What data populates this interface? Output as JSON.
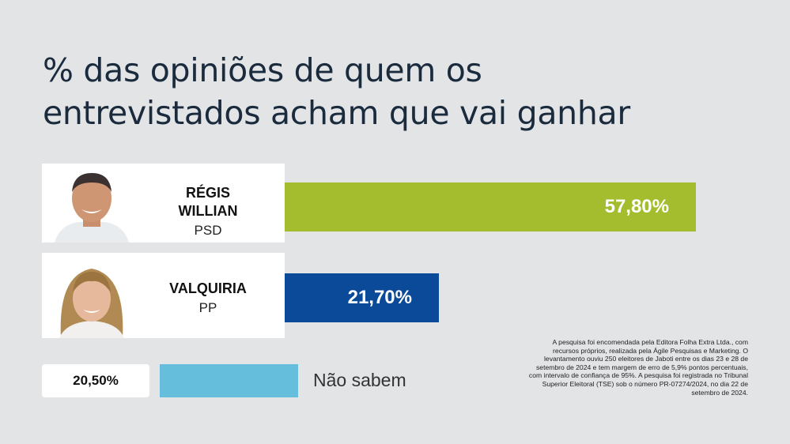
{
  "title": "% das opiniões de quem os entrevistados acham que vai ganhar",
  "colors": {
    "background": "#e3e4e6",
    "title": "#1b2b3e",
    "bar_regis": "#a4bd2e",
    "bar_valquiria": "#0b4a99",
    "bar_nao_sabem": "#65bfdc"
  },
  "candidates": [
    {
      "name_line1": "RÉGIS",
      "name_line2": "WILLIAN",
      "party": "PSD",
      "value_label": "57,80%"
    },
    {
      "name_line1": "VALQUIRIA",
      "party": "PP",
      "value_label": "21,70%"
    }
  ],
  "nao_sabem": {
    "value_label": "20,50%",
    "label": "Não sabem"
  },
  "footnote": "A pesquisa foi encomendada pela Editora Folha Extra Ltda., com recursos próprios, realizada pela Ágile Pesquisas e Marketing. O levantamento ouviu 250 eleitores de Jaboti entre os dias 23 e 28 de setembro de 2024 e tem margem de erro de 5,9% pontos percentuais, com intervalo de confiança de 95%. A pesquisa foi registrada no Tribunal Superior Eleitoral (TSE) sob o número PR-07274/2024, no dia 22 de setembro de 2024.",
  "chart_data": {
    "type": "bar",
    "orientation": "horizontal",
    "title": "% das opiniões de quem os entrevistados acham que vai ganhar",
    "categories": [
      "RÉGIS WILLIAN (PSD)",
      "VALQUIRIA (PP)",
      "Não sabem"
    ],
    "values": [
      57.8,
      21.7,
      20.5
    ],
    "value_labels": [
      "57,80%",
      "21,70%",
      "20,50%"
    ],
    "colors": [
      "#a4bd2e",
      "#0b4a99",
      "#65bfdc"
    ],
    "unit": "%",
    "grid": false
  }
}
